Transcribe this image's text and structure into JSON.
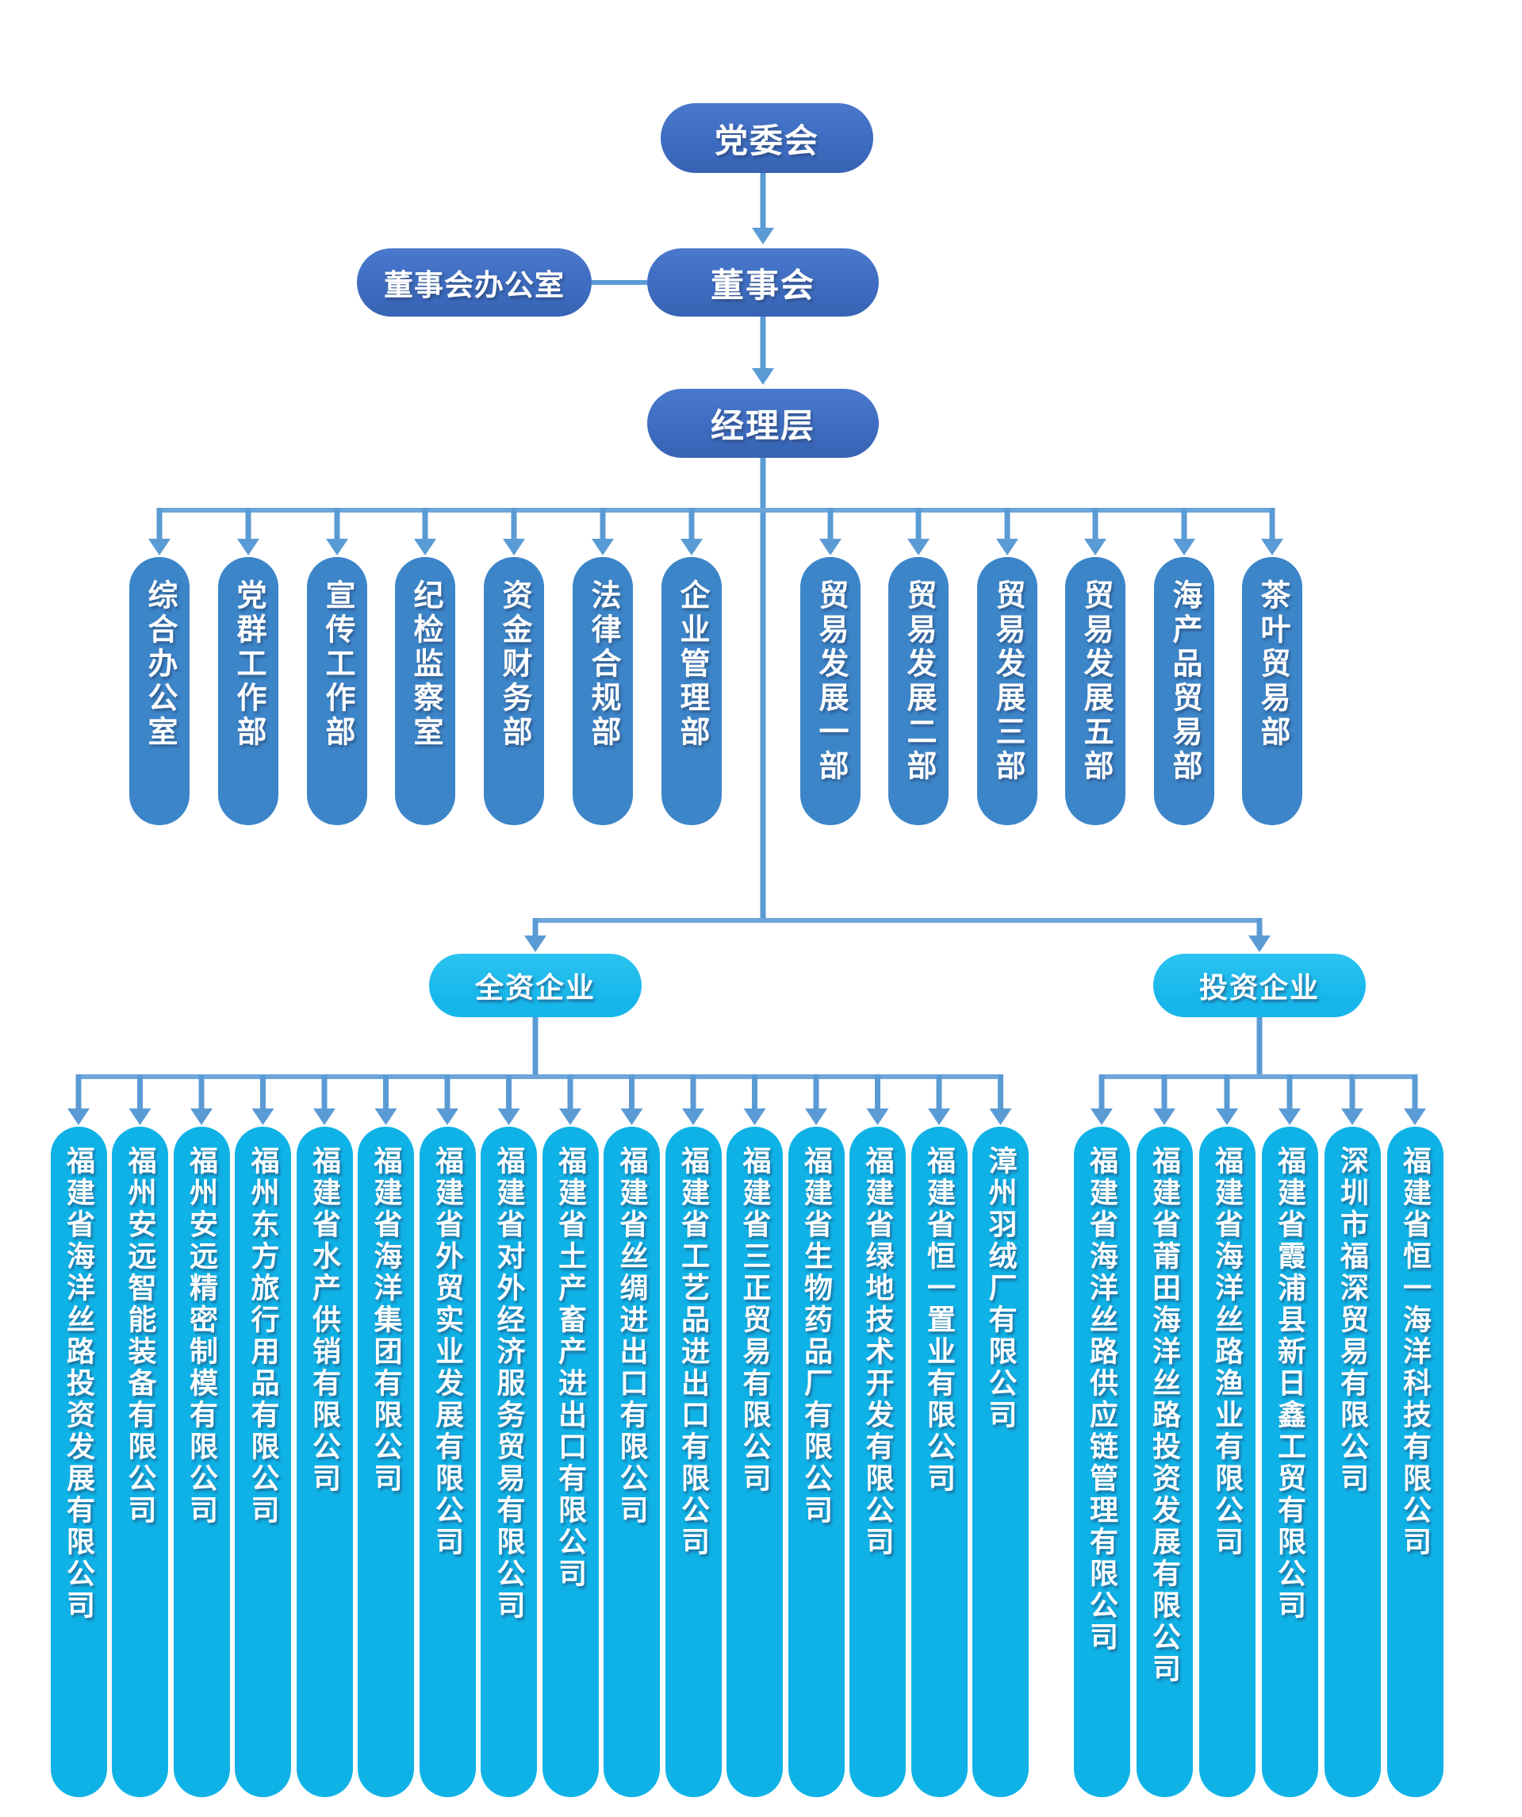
{
  "org": {
    "title_nodes": {
      "party_committee": "党委会",
      "board_office": "董事会办公室",
      "board": "董事会",
      "management": "经理层"
    },
    "departments": [
      "综合办公室",
      "党群工作部",
      "宣传工作部",
      "纪检监察室",
      "资金财务部",
      "法律合规部",
      "企业管理部",
      "贸易发展一部",
      "贸易发展二部",
      "贸易发展三部",
      "贸易发展五部",
      "海产品贸易部",
      "茶叶贸易部"
    ],
    "groups": [
      {
        "label": "全资企业",
        "companies": [
          "福建省海洋丝路投资发展有限公司",
          "福州安远智能装备有限公司",
          "福州安远精密制模有限公司",
          "福州东方旅行用品有限公司",
          "福建省水产供销有限公司",
          "福建省海洋集团有限公司",
          "福建省外贸实业发展有限公司",
          "福建省对外经济服务贸易有限公司",
          "福建省土产畜产进出口有限公司",
          "福建省丝绸进出口有限公司",
          "福建省工艺品进出口有限公司",
          "福建省三正贸易有限公司",
          "福建省生物药品厂有限公司",
          "福建省绿地技术开发有限公司",
          "福建省恒一置业有限公司",
          "漳州羽绒厂有限公司"
        ]
      },
      {
        "label": "投资企业",
        "companies": [
          "福建省海洋丝路供应链管理有限公司",
          "福建省莆田海洋丝路投资发展有限公司",
          "福建省海洋丝路渔业有限公司",
          "福建省霞浦县新日鑫工贸有限公司",
          "深圳市福深贸易有限公司",
          "福建省恒一海洋科技有限公司"
        ]
      }
    ],
    "colors": {
      "dark_blue": "#3e6cc0",
      "dark_blue_light": "#4a78cc",
      "dark_blue_deep": "#3863b4",
      "dept_blue": "#3c85c9",
      "category_cyan": "#17b6ea",
      "category_cyan_light": "#2cc3f0",
      "company_cyan": "#0fb2e7",
      "connector": "#5b9bd5",
      "connector_line": "#6ea5da"
    }
  }
}
